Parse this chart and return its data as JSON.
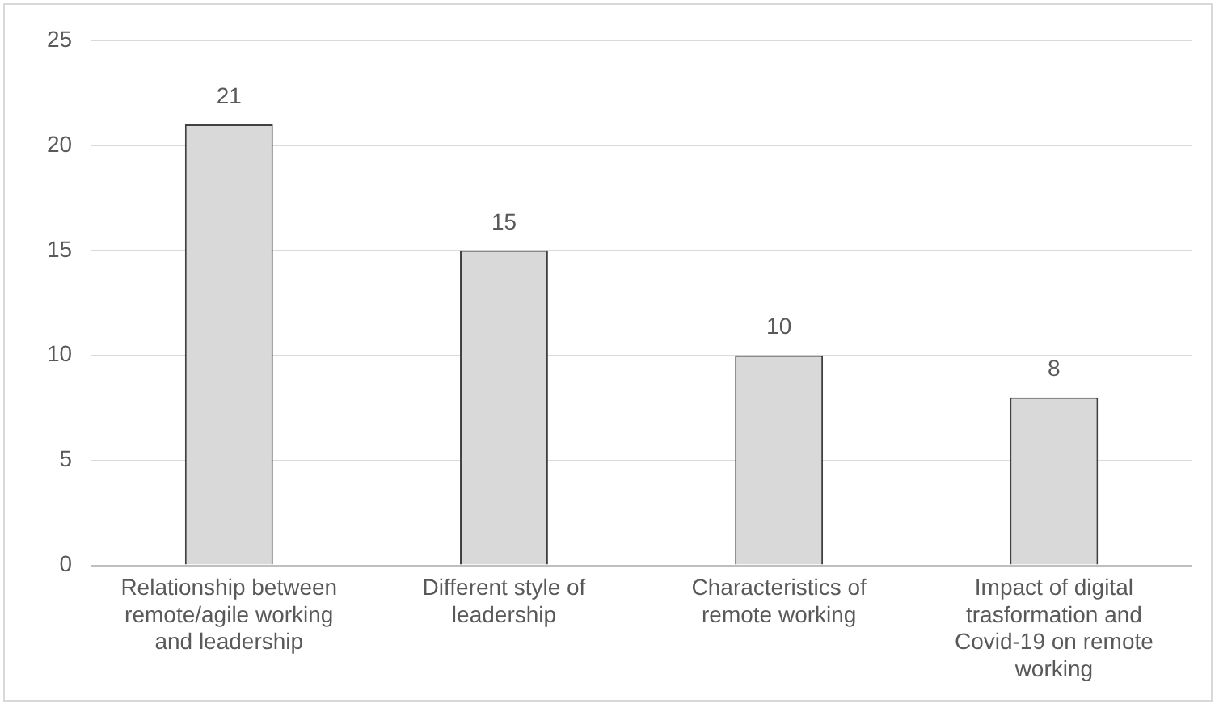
{
  "chart_data": {
    "type": "bar",
    "categories": [
      "Relationship between remote/agile working and leadership",
      "Different style of leadership",
      "Characteristics of remote working",
      "Impact of digital trasformation and Covid-19 on remote working"
    ],
    "values": [
      21,
      15,
      10,
      8
    ],
    "color": "#d9d9d9",
    "ylim": [
      0,
      25
    ],
    "yticks": [
      0,
      5,
      10,
      15,
      20,
      25
    ],
    "grid": "y",
    "data_labels": true,
    "legend": false
  }
}
